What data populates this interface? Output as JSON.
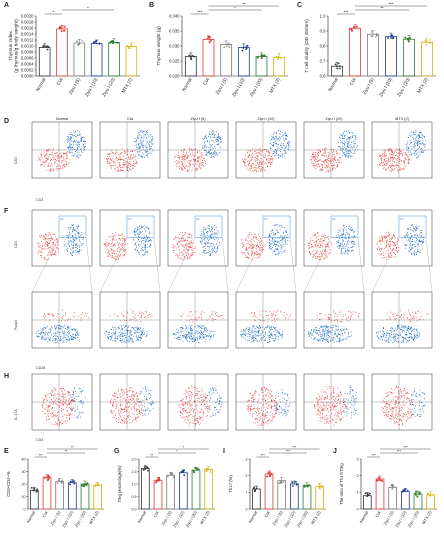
{
  "panels": {
    "A": "A",
    "B": "B",
    "C": "C",
    "D": "D",
    "F": "F",
    "H": "H",
    "E": "E",
    "G": "G",
    "I": "I",
    "J": "J"
  },
  "groups": [
    "Normal",
    "CIA",
    "Ziyu I (5)",
    "Ziyu I (10)",
    "Ziyu I (20)",
    "MTX (2)"
  ],
  "colors": {
    "normal": "#333333",
    "cia": "#e53935",
    "z5": "#7a7a7a",
    "z10": "#1e3a8a",
    "z20": "#2e7d32",
    "mtx": "#d4b106"
  },
  "flow_rows": {
    "D": {
      "ylabel": "CD4",
      "xlabel": "CD3"
    },
    "F1": {
      "ylabel": "CD4",
      "gate": "P3"
    },
    "F2": {
      "ylabel": "Foxp3",
      "xlabel": "CD25"
    },
    "H": {
      "ylabel": "IL-17A",
      "xlabel": "CD4"
    }
  },
  "flow_titles": [
    "Normal",
    "CIA",
    "Ziyu I (5)",
    "Ziyu I (10)",
    "Ziyu I (20)",
    "MTX (2)"
  ],
  "chart_data": [
    {
      "id": "A",
      "type": "bar",
      "ylabel": "Thymus index\n(g thymus/g body weight)",
      "ylim": [
        0,
        0.002
      ],
      "yticks": [
        "0.0000",
        "0.0002",
        "0.0004",
        "0.0006",
        "0.0008",
        "0.0010",
        "0.0012",
        "0.0014",
        "0.0016",
        "0.0018",
        "0.0020"
      ],
      "values": [
        0.00095,
        0.00157,
        0.0011,
        0.00108,
        0.00112,
        0.00098
      ],
      "sig": [
        "*",
        "*"
      ]
    },
    {
      "id": "B",
      "type": "bar",
      "ylabel": "Thymus weight (g)",
      "ylim": [
        0.02,
        0.04
      ],
      "yticks": [
        "0.020",
        "0.025",
        "0.030",
        "0.035",
        "0.040"
      ],
      "values": [
        0.0265,
        0.0322,
        0.0305,
        0.0295,
        0.0265,
        0.0262
      ],
      "sig": [
        "***",
        "*",
        "**"
      ]
    },
    {
      "id": "C",
      "type": "bar",
      "ylabel": "T cell vitality (OD 450nm)",
      "ylim": [
        0.6,
        1.0
      ],
      "yticks": [
        "0.6",
        "0.7",
        "0.8",
        "0.9",
        "1.0"
      ],
      "values": [
        0.665,
        0.918,
        0.878,
        0.862,
        0.845,
        0.825
      ],
      "sig": [
        "***",
        "**",
        "***"
      ]
    },
    {
      "id": "E",
      "type": "bar",
      "ylabel": "CD3+CD4+%",
      "ylim": [
        0,
        40
      ],
      "yticks": [
        "0",
        "10",
        "20",
        "30",
        "40"
      ],
      "values": [
        15,
        25,
        22,
        21,
        20,
        19
      ],
      "sig": [
        "***",
        "**",
        "**"
      ]
    },
    {
      "id": "G",
      "type": "bar",
      "ylabel": "Treg percentage(%)",
      "ylim": [
        0,
        2.0
      ],
      "yticks": [
        "0.0",
        "0.5",
        "1.0",
        "1.5",
        "2.0"
      ],
      "values": [
        1.62,
        1.15,
        1.35,
        1.45,
        1.55,
        1.58
      ],
      "sig": [
        "**",
        "*",
        "*"
      ]
    },
    {
      "id": "I",
      "type": "bar",
      "ylabel": "Th17 (%)",
      "ylim": [
        0,
        3
      ],
      "yticks": [
        "0",
        "1",
        "2",
        "3"
      ],
      "values": [
        1.2,
        2.1,
        1.7,
        1.5,
        1.4,
        1.35
      ],
      "sig": [
        "***",
        "***",
        "***"
      ]
    },
    {
      "id": "J",
      "type": "bar",
      "ylabel": "The ratio of Th17/Treg",
      "ylim": [
        0,
        3
      ],
      "yticks": [
        "0",
        "1",
        "2",
        "3"
      ],
      "values": [
        0.8,
        1.8,
        1.3,
        1.05,
        0.9,
        0.85
      ],
      "sig": [
        "***",
        "***",
        "***"
      ]
    }
  ]
}
